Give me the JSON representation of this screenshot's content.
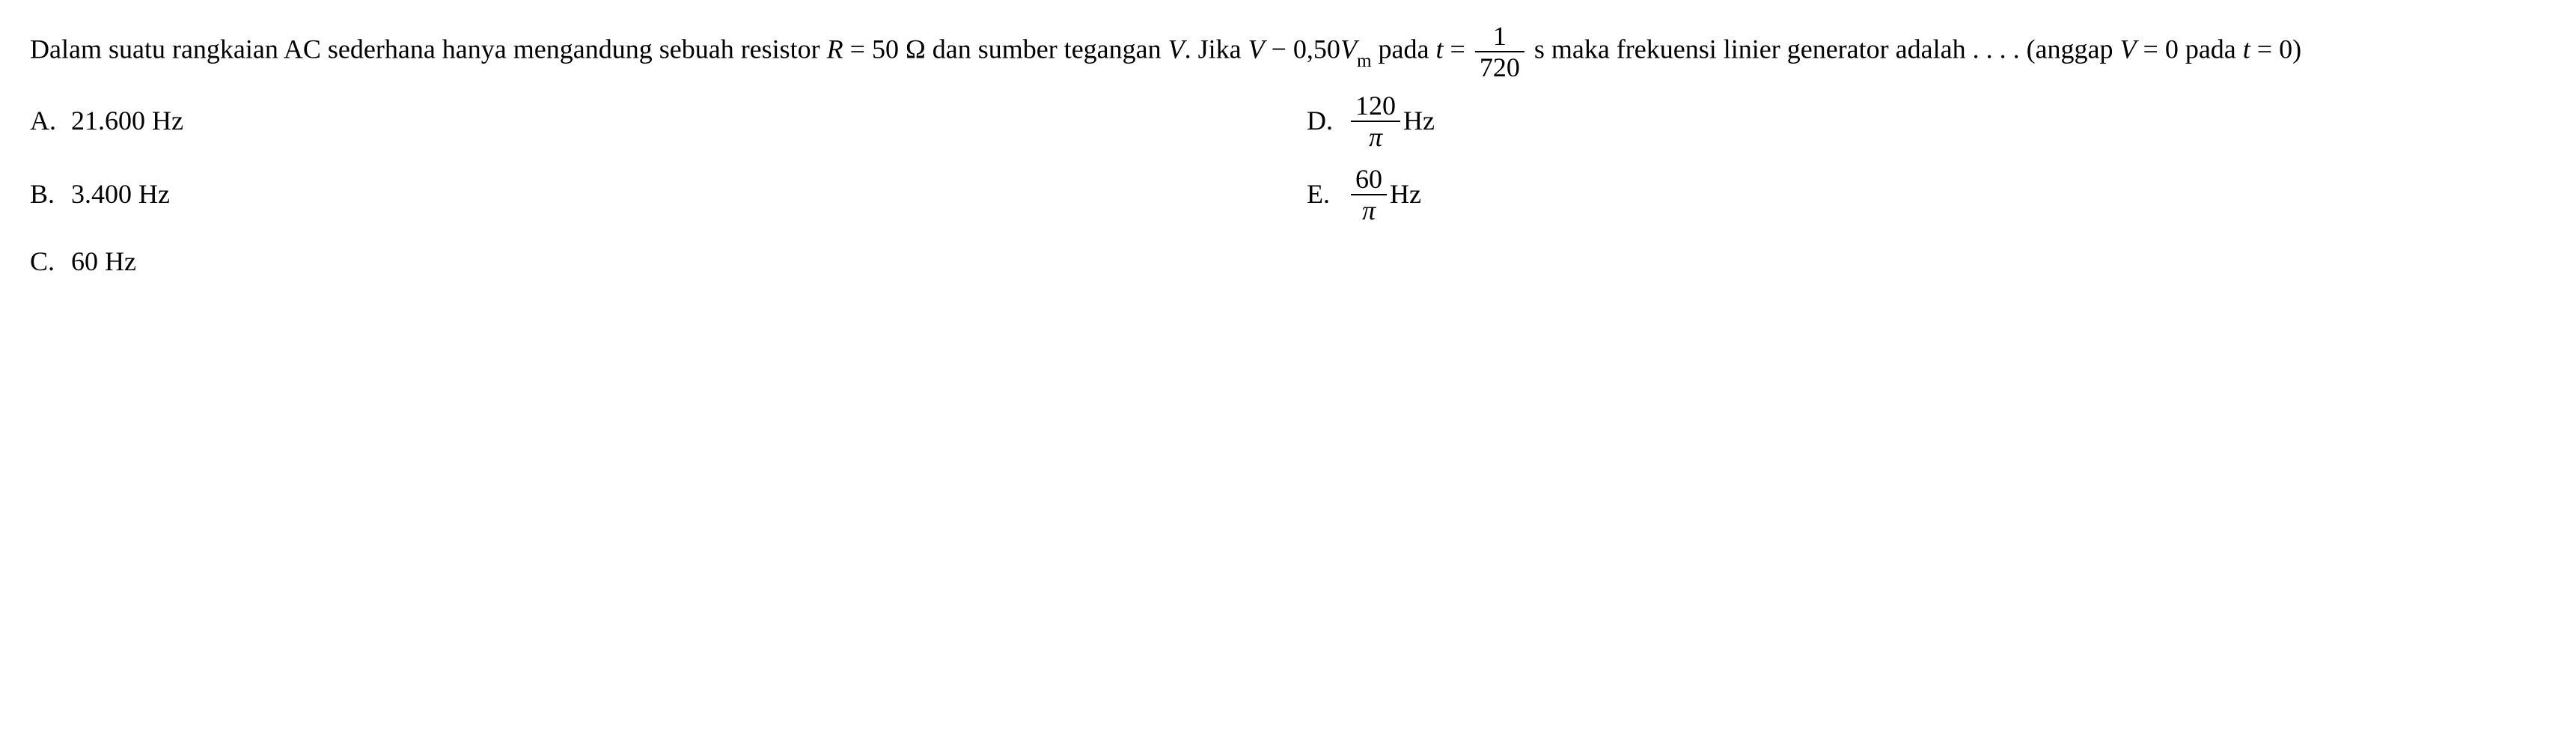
{
  "question": {
    "text_part1": "Dalam suatu rangkaian AC sederhana hanya mengandung sebuah resistor ",
    "r_var": "R",
    "r_eq": " = 50 Ω dan sumber tegangan ",
    "v_var1": "V",
    "text_part2": ". Jika ",
    "v_var2": "V",
    "minus": " − 0,50",
    "v_var3": "V",
    "sub_m": "m",
    "text_part3": " pada ",
    "t_var": "t",
    "eq1": " = ",
    "frac1_num": "1",
    "frac1_den": "720",
    "text_part4": " s maka frekuensi linier generator adalah . . . . (anggap ",
    "v_var4": "V",
    "eq2": " = 0 pada ",
    "t_var2": "t",
    "eq3": " = 0)"
  },
  "options": {
    "a": {
      "label": "A.",
      "value": "21.600 Hz"
    },
    "b": {
      "label": "B.",
      "value": "3.400 Hz"
    },
    "c": {
      "label": "C.",
      "value": "60 Hz"
    },
    "d": {
      "label": "D.",
      "num": "120",
      "den": "π",
      "unit": " Hz"
    },
    "e": {
      "label": "E.",
      "num": "60",
      "den": "π",
      "unit": " Hz"
    }
  },
  "style": {
    "text_color": "#000000",
    "background_color": "#ffffff",
    "font_family": "Times New Roman",
    "base_font_size": 36
  }
}
